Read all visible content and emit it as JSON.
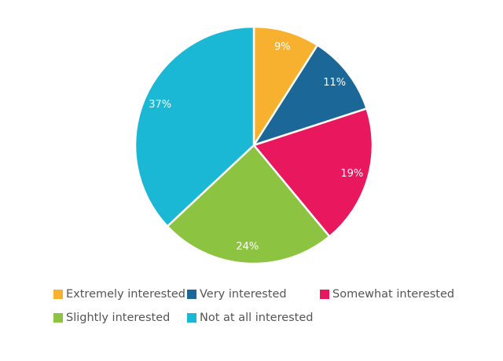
{
  "chart_data": {
    "type": "pie",
    "categories": [
      "Extremely interested",
      "Very interested",
      "Somewhat interested",
      "Slightly interested",
      "Not at all interested"
    ],
    "values": [
      9,
      11,
      19,
      24,
      37
    ],
    "value_labels": [
      "9%",
      "11%",
      "19%",
      "24%",
      "37%"
    ],
    "colors": [
      "#f7b12e",
      "#1b6898",
      "#e8175e",
      "#8cc441",
      "#1bb8d5"
    ],
    "legend": "bottom"
  }
}
